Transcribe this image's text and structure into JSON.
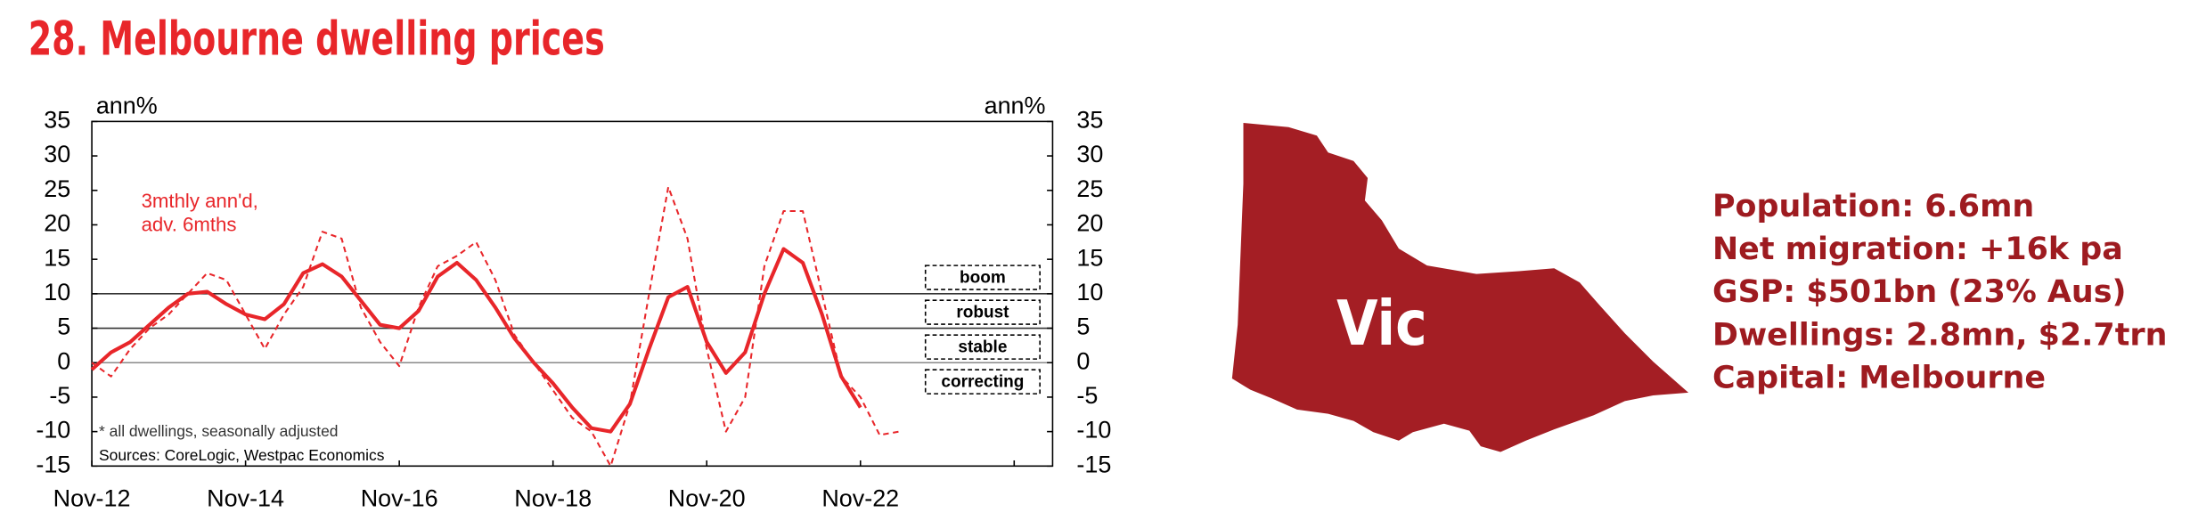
{
  "chart_data": {
    "type": "line",
    "title": "28. Melbourne dwelling prices",
    "y_label": "ann%",
    "y2_label": "ann%",
    "x": [
      "Nov-12",
      "Feb-13",
      "May-13",
      "Aug-13",
      "Nov-13",
      "Feb-14",
      "May-14",
      "Aug-14",
      "Nov-14",
      "Feb-15",
      "May-15",
      "Aug-15",
      "Nov-15",
      "Feb-16",
      "May-16",
      "Aug-16",
      "Nov-16",
      "Feb-17",
      "May-17",
      "Aug-17",
      "Nov-17",
      "Feb-18",
      "May-18",
      "Aug-18",
      "Nov-18",
      "Feb-19",
      "May-19",
      "Aug-19",
      "Nov-19",
      "Feb-20",
      "May-20",
      "Aug-20",
      "Nov-20",
      "Feb-21",
      "May-21",
      "Aug-21",
      "Nov-21",
      "Feb-22",
      "May-22",
      "Aug-22",
      "Nov-22",
      "Feb-23",
      "May-23"
    ],
    "series": [
      {
        "color": "#e8262a",
        "dash": false,
        "values": [
          -1,
          1.5,
          3,
          5.5,
          8,
          10,
          10.3,
          8.5,
          7,
          6.3,
          8.5,
          13,
          14.3,
          12.5,
          9,
          5.5,
          5,
          7.5,
          12.5,
          14.5,
          12,
          8,
          3.5,
          0,
          -3,
          -6.5,
          -9.5,
          -10,
          -6,
          2,
          9.5,
          11,
          3,
          -1.5,
          1.5,
          10,
          16.5,
          14.5,
          7,
          -2,
          -6.5,
          null,
          null
        ]
      },
      {
        "name": "3mthly ann'd, adv. 6mths",
        "color": "#e8262a",
        "dash": true,
        "values": [
          0,
          -2,
          2,
          5,
          7,
          10,
          13,
          12,
          7,
          2,
          7,
          11,
          19,
          18,
          8,
          3,
          -0.5,
          8,
          14,
          15.5,
          17.5,
          12,
          4,
          0,
          -4,
          -8,
          -10,
          -15,
          -6,
          10,
          25.5,
          18,
          2,
          -10,
          -5,
          14,
          22,
          22,
          10,
          -2,
          -5,
          -10.5,
          -10
        ]
      }
    ],
    "xlim": [
      "Nov-12",
      "May-25"
    ],
    "xticks": [
      {
        "value": "Nov-12",
        "label": "Nov-12"
      },
      {
        "value": "Nov-14",
        "label": "Nov-14"
      },
      {
        "value": "Nov-16",
        "label": "Nov-16"
      },
      {
        "value": "Nov-18",
        "label": "Nov-18"
      },
      {
        "value": "Nov-20",
        "label": "Nov-20"
      },
      {
        "value": "Nov-22",
        "label": "Nov-22"
      },
      {
        "value": "Nov-24",
        "label": null
      }
    ],
    "ylim": [
      -15,
      35
    ],
    "yticks": [
      -15,
      -10,
      -5,
      0,
      5,
      10,
      15,
      20,
      25,
      30,
      35
    ],
    "y2lim": [
      -15,
      35
    ],
    "y2ticks": [
      -15,
      -10,
      -5,
      0,
      5,
      10,
      15,
      20,
      25,
      30,
      35
    ],
    "reference_lines": [
      0,
      5,
      10
    ],
    "zones": [
      "boom",
      "robust",
      "stable",
      "correcting"
    ],
    "footnote": "* all dwellings, seasonally adjusted",
    "source": "Sources: CoreLogic, Westpac Economics"
  },
  "map": {
    "label": "Vic",
    "facts": [
      "Population: 6.6mn",
      "Net migration: +16k pa",
      "GSP: $501bn (23% Aus)",
      "Dwellings: 2.8mn, $2.7trn",
      "Capital: Melbourne"
    ]
  }
}
